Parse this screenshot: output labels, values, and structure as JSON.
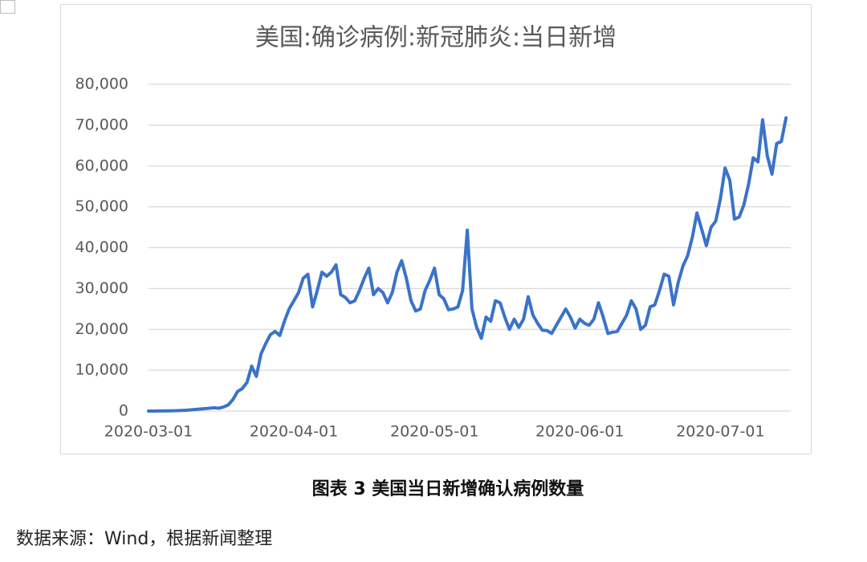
{
  "chart_data": {
    "type": "line",
    "title": "美国:确诊病例:新冠肺炎:当日新增",
    "x": [
      "2020-03-01",
      "2020-03-02",
      "2020-03-03",
      "2020-03-04",
      "2020-03-05",
      "2020-03-06",
      "2020-03-07",
      "2020-03-08",
      "2020-03-09",
      "2020-03-10",
      "2020-03-11",
      "2020-03-12",
      "2020-03-13",
      "2020-03-14",
      "2020-03-15",
      "2020-03-16",
      "2020-03-17",
      "2020-03-18",
      "2020-03-19",
      "2020-03-20",
      "2020-03-21",
      "2020-03-22",
      "2020-03-23",
      "2020-03-24",
      "2020-03-25",
      "2020-03-26",
      "2020-03-27",
      "2020-03-28",
      "2020-03-29",
      "2020-03-30",
      "2020-03-31",
      "2020-04-01",
      "2020-04-02",
      "2020-04-03",
      "2020-04-04",
      "2020-04-05",
      "2020-04-06",
      "2020-04-07",
      "2020-04-08",
      "2020-04-09",
      "2020-04-10",
      "2020-04-11",
      "2020-04-12",
      "2020-04-13",
      "2020-04-14",
      "2020-04-15",
      "2020-04-16",
      "2020-04-17",
      "2020-04-18",
      "2020-04-19",
      "2020-04-20",
      "2020-04-21",
      "2020-04-22",
      "2020-04-23",
      "2020-04-24",
      "2020-04-25",
      "2020-04-26",
      "2020-04-27",
      "2020-04-28",
      "2020-04-29",
      "2020-04-30",
      "2020-05-01",
      "2020-05-02",
      "2020-05-03",
      "2020-05-04",
      "2020-05-05",
      "2020-05-06",
      "2020-05-07",
      "2020-05-08",
      "2020-05-09",
      "2020-05-10",
      "2020-05-11",
      "2020-05-12",
      "2020-05-13",
      "2020-05-14",
      "2020-05-15",
      "2020-05-16",
      "2020-05-17",
      "2020-05-18",
      "2020-05-19",
      "2020-05-20",
      "2020-05-21",
      "2020-05-22",
      "2020-05-23",
      "2020-05-24",
      "2020-05-25",
      "2020-05-26",
      "2020-05-27",
      "2020-05-28",
      "2020-05-29",
      "2020-05-30",
      "2020-05-31",
      "2020-06-01",
      "2020-06-02",
      "2020-06-03",
      "2020-06-04",
      "2020-06-05",
      "2020-06-06",
      "2020-06-07",
      "2020-06-08",
      "2020-06-09",
      "2020-06-10",
      "2020-06-11",
      "2020-06-12",
      "2020-06-13",
      "2020-06-14",
      "2020-06-15",
      "2020-06-16",
      "2020-06-17",
      "2020-06-18",
      "2020-06-19",
      "2020-06-20",
      "2020-06-21",
      "2020-06-22",
      "2020-06-23",
      "2020-06-24",
      "2020-06-25",
      "2020-06-26",
      "2020-06-27",
      "2020-06-28",
      "2020-06-29",
      "2020-06-30",
      "2020-07-01",
      "2020-07-02",
      "2020-07-03",
      "2020-07-04",
      "2020-07-05",
      "2020-07-06",
      "2020-07-07",
      "2020-07-08",
      "2020-07-09",
      "2020-07-10",
      "2020-07-11",
      "2020-07-12",
      "2020-07-13",
      "2020-07-14",
      "2020-07-15"
    ],
    "values": [
      0,
      0,
      20,
      30,
      50,
      80,
      100,
      150,
      200,
      300,
      400,
      500,
      600,
      700,
      800,
      700,
      1000,
      1500,
      2800,
      4800,
      5500,
      7000,
      11000,
      8500,
      14000,
      16500,
      18700,
      19500,
      18500,
      22000,
      25000,
      27000,
      29000,
      32500,
      33500,
      25500,
      29500,
      34000,
      33000,
      34000,
      35800,
      28500,
      27800,
      26500,
      27000,
      29500,
      32500,
      35000,
      28500,
      30000,
      29000,
      26500,
      29000,
      34000,
      36800,
      32500,
      27000,
      24500,
      25000,
      29500,
      32000,
      35000,
      28500,
      27500,
      24800,
      25000,
      25500,
      29500,
      44300,
      25000,
      20500,
      17800,
      23000,
      22000,
      27000,
      26500,
      23000,
      20000,
      22500,
      20500,
      22500,
      28000,
      23500,
      21500,
      19800,
      19700,
      19000,
      21000,
      23000,
      25000,
      23000,
      20300,
      22500,
      21500,
      21000,
      22500,
      26500,
      23000,
      19000,
      19300,
      19500,
      21500,
      23500,
      27000,
      25000,
      20000,
      21000,
      25500,
      26000,
      29500,
      33500,
      33000,
      26000,
      31500,
      35500,
      38000,
      42500,
      48500,
      44500,
      40500,
      45000,
      46500,
      52000,
      59500,
      56500,
      47000,
      47500,
      50500,
      55500,
      62000,
      61000,
      71300,
      62500,
      58000,
      65500,
      66000,
      71800
    ],
    "color": "#3a73c8",
    "xlim": [
      "2020-03-01",
      "2020-07-16"
    ],
    "xticks": [
      "2020-03-01",
      "2020-04-01",
      "2020-05-01",
      "2020-06-01",
      "2020-07-01"
    ],
    "ylim": [
      0,
      80000
    ],
    "yticks": [
      0,
      {
        "value": 10000,
        "label": "10,000"
      },
      {
        "value": 20000,
        "label": "20,000"
      },
      {
        "value": 30000,
        "label": "30,000"
      },
      {
        "value": 40000,
        "label": "40,000"
      },
      {
        "value": 50000,
        "label": "50,000"
      },
      {
        "value": 60000,
        "label": "60,000"
      },
      {
        "value": 70000,
        "label": "70,000"
      },
      {
        "value": 80000,
        "label": "80,000"
      }
    ],
    "grid": true
  },
  "caption": "图表 3 美国当日新增确认病例数量",
  "source": "数据来源：Wind，根据新闻整理"
}
